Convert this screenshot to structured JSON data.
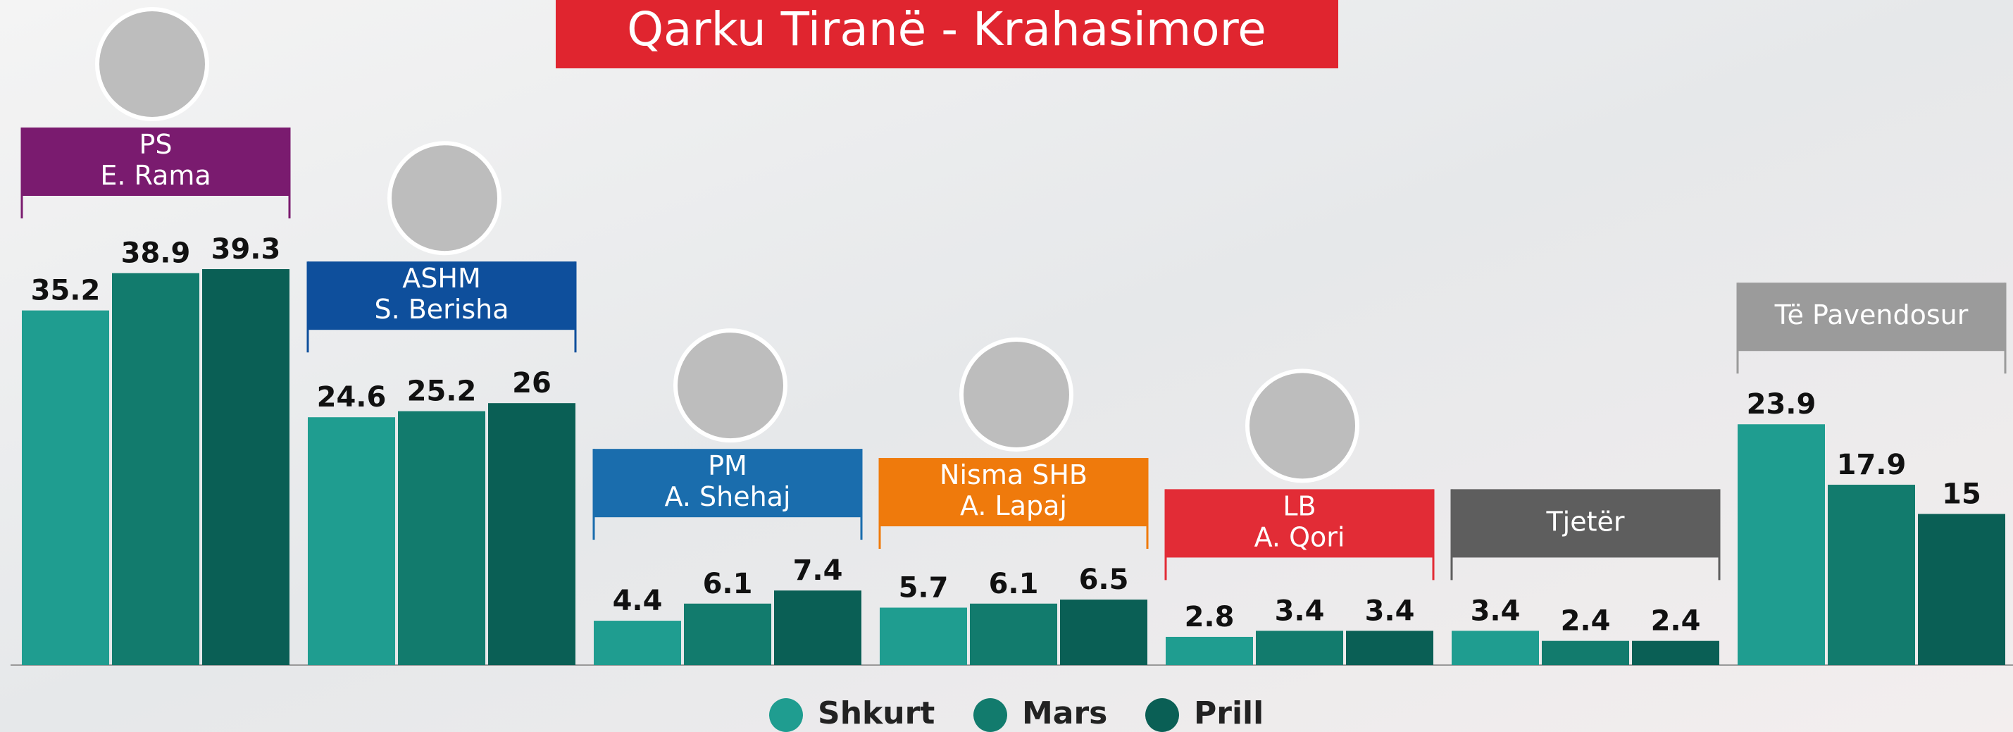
{
  "chart_data": {
    "type": "bar",
    "title": "Qarku Tiranë - Krahasimore",
    "categories": [
      [
        "PS",
        "E. Rama"
      ],
      [
        "ASHM",
        "S. Berisha"
      ],
      [
        "PM",
        "A. Shehaj"
      ],
      [
        "Nisma SHB",
        "A. Lapaj"
      ],
      [
        "LB",
        "A. Qori"
      ],
      [
        "Tjetër"
      ],
      [
        "Të Pavendosur"
      ]
    ],
    "label_colors": [
      "#7a1b6f",
      "#0e4f9c",
      "#1a6dad",
      "#ef7a0c",
      "#e22c36",
      "#5e5e5e",
      "#9b9b9b"
    ],
    "series": [
      {
        "name": "Shkurt",
        "color": "#1f9d90",
        "values": [
          35.2,
          24.6,
          4.4,
          5.7,
          2.8,
          3.4,
          23.9
        ]
      },
      {
        "name": "Mars",
        "color": "#127b6d",
        "values": [
          38.9,
          25.2,
          6.1,
          6.1,
          3.4,
          2.4,
          17.9
        ]
      },
      {
        "name": "Prill",
        "color": "#0a5f55",
        "values": [
          39.3,
          26,
          7.4,
          6.5,
          3.4,
          2.4,
          15
        ]
      }
    ],
    "ylim": [
      0,
      40
    ]
  }
}
